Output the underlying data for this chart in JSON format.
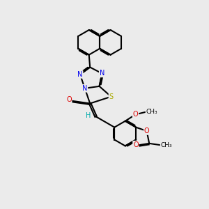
{
  "bg_color": "#ebebeb",
  "bond_color": "#000000",
  "bond_width": 1.5,
  "dbo": 0.055,
  "N_color": "#0000ee",
  "S_color": "#aaaa00",
  "O_color": "#dd0000",
  "H_color": "#00aaaa",
  "fig_size": [
    3.0,
    3.0
  ],
  "dpi": 100,
  "xlim": [
    0,
    10
  ],
  "ylim": [
    0,
    10
  ]
}
